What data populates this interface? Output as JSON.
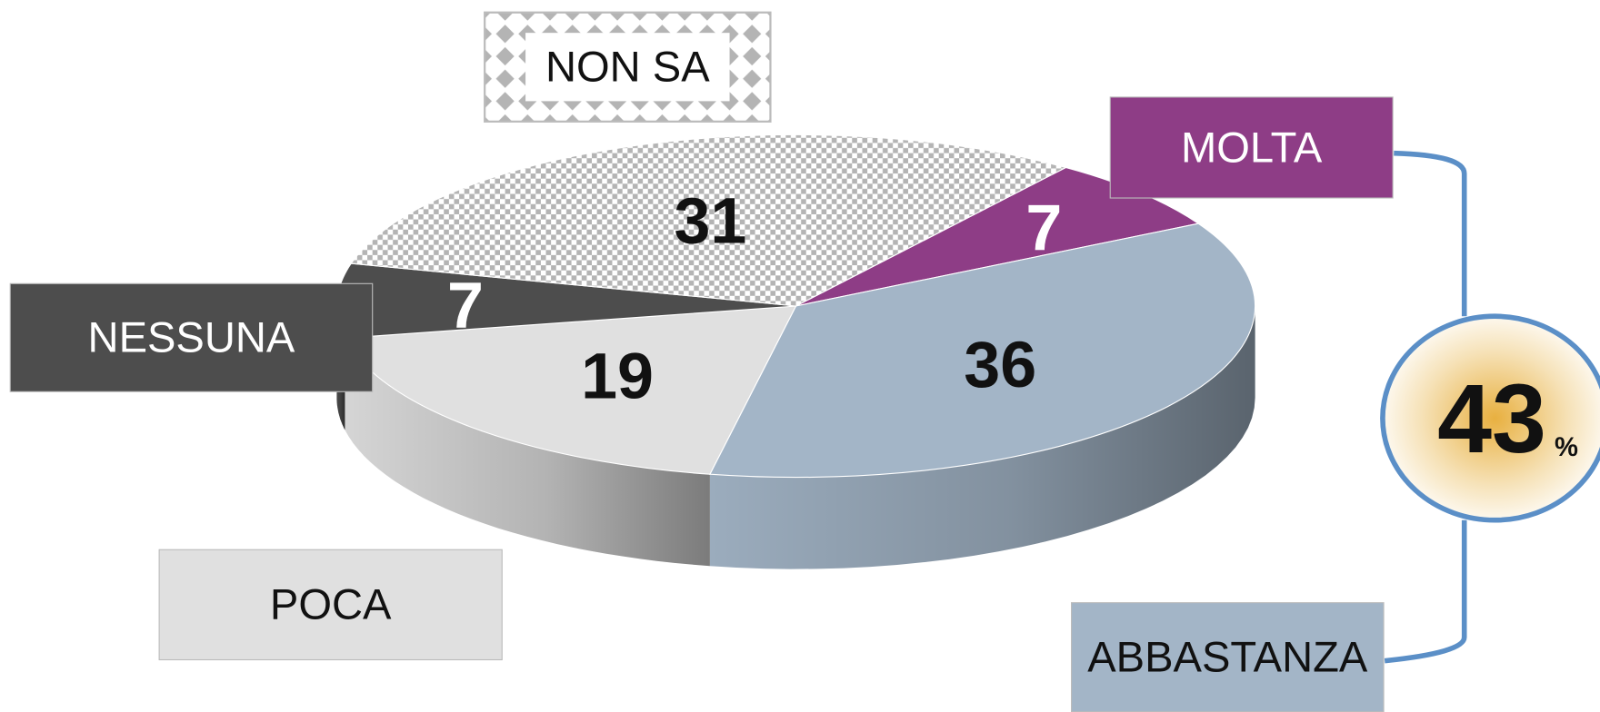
{
  "chart_data": {
    "type": "pie",
    "categories": [
      "MOLTA",
      "ABBASTANZA",
      "POCA",
      "NESSUNA",
      "NON SA"
    ],
    "values": [
      7,
      36,
      19,
      7,
      31
    ],
    "colors": [
      "#8e3d86",
      "#a3b5c7",
      "#e0e0e0",
      "#4d4d4d",
      "#b4b4b4"
    ],
    "hatch": [
      false,
      false,
      false,
      false,
      true
    ],
    "annotation": {
      "text": "43",
      "unit": "%"
    }
  }
}
